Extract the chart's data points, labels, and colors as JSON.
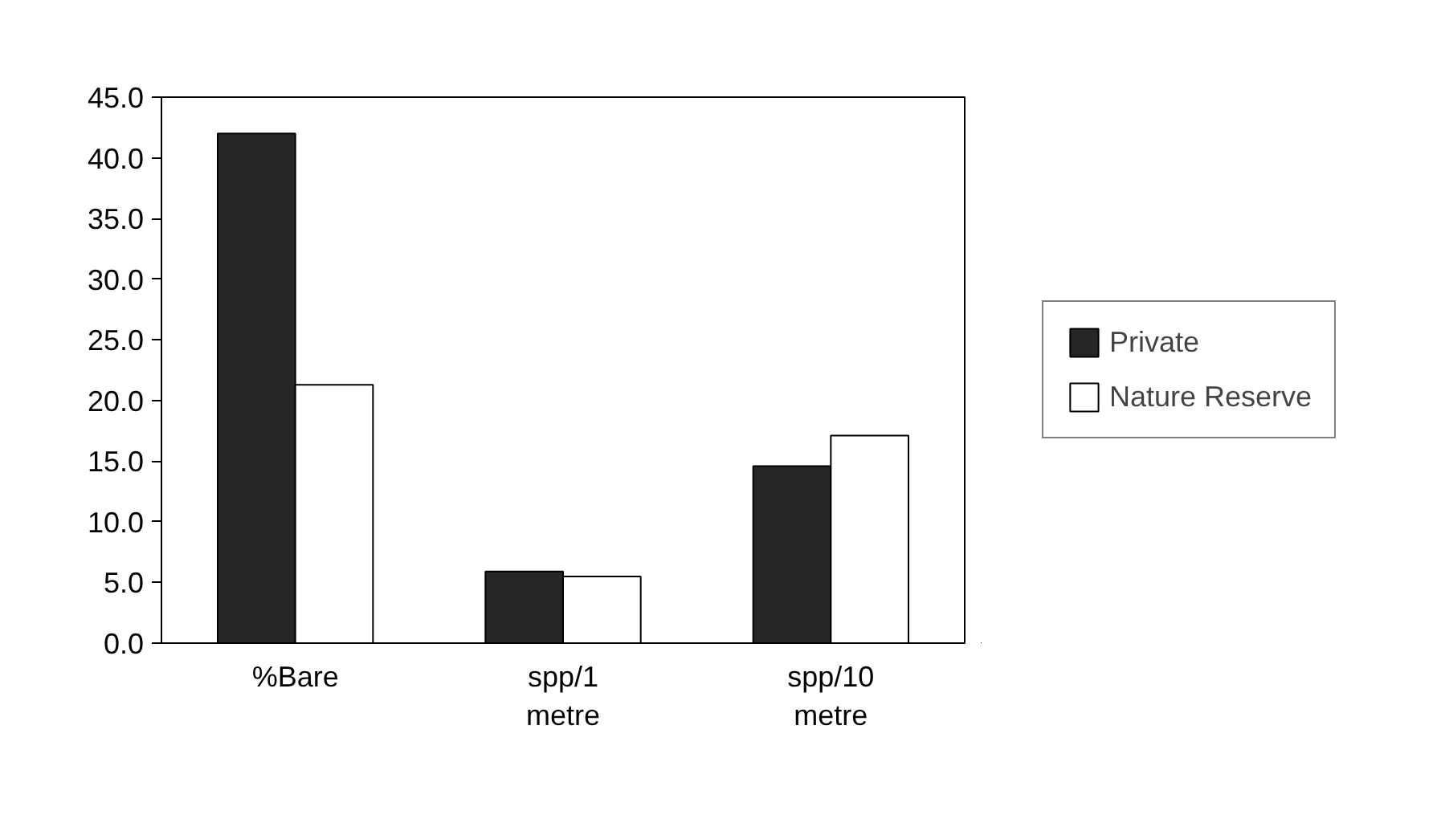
{
  "chart_data": {
    "type": "bar",
    "categories": [
      "%Bare",
      "spp/1 metre",
      "spp/10 metre"
    ],
    "series": [
      {
        "name": "Private",
        "color": "#262626",
        "values": [
          42.0,
          5.9,
          14.6
        ]
      },
      {
        "name": "Nature Reserve",
        "color": "#ffffff",
        "values": [
          21.3,
          5.5,
          17.1
        ]
      }
    ],
    "ylim": [
      0,
      45
    ],
    "yticks": [
      {
        "value": 0,
        "label": "0.0"
      },
      {
        "value": 5,
        "label": "5.0"
      },
      {
        "value": 10,
        "label": "10.0"
      },
      {
        "value": 15,
        "label": "15.0"
      },
      {
        "value": 20,
        "label": "20.0"
      },
      {
        "value": 25,
        "label": "25.0"
      },
      {
        "value": 30,
        "label": "30.0"
      },
      {
        "value": 35,
        "label": "35.0"
      },
      {
        "value": 40,
        "label": "40.0"
      },
      {
        "value": 45,
        "label": "45.0"
      }
    ],
    "grid": false,
    "legend": "right"
  }
}
